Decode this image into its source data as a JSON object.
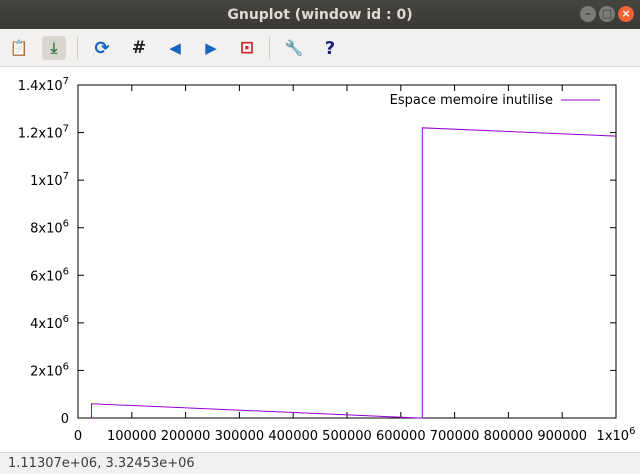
{
  "window": {
    "title": "Gnuplot (window id : 0)",
    "minimize_glyph": "–",
    "maximize_glyph": "□",
    "close_glyph": "×"
  },
  "toolbar": {
    "items": [
      {
        "icon": "clipboard-icon",
        "glyph": "📋"
      },
      {
        "icon": "export-icon",
        "glyph": "⤓"
      },
      {
        "icon": "replot-icon",
        "glyph": "⟳"
      },
      {
        "icon": "grid-icon",
        "glyph": "#"
      },
      {
        "icon": "zoom-previous-icon",
        "glyph": "◀"
      },
      {
        "icon": "zoom-next-icon",
        "glyph": "▶"
      },
      {
        "icon": "autoscale-icon",
        "glyph": "⊡"
      },
      {
        "icon": "settings-icon",
        "glyph": "🔧"
      },
      {
        "icon": "help-icon",
        "glyph": "?"
      }
    ]
  },
  "status": {
    "coords": "1.11307e+06,  3.32453e+06"
  },
  "chart_data": {
    "type": "line",
    "xlim": [
      0,
      1000000
    ],
    "ylim": [
      0,
      14000000
    ],
    "x_ticks": [
      0,
      100000,
      200000,
      300000,
      400000,
      500000,
      600000,
      700000,
      800000,
      900000,
      1000000
    ],
    "x_tick_labels": [
      "0",
      "100000",
      "200000",
      "300000",
      "400000",
      "500000",
      "600000",
      "700000",
      "800000",
      "900000",
      "1x10^6"
    ],
    "y_ticks": [
      0,
      2000000,
      4000000,
      6000000,
      8000000,
      10000000,
      12000000,
      14000000
    ],
    "y_tick_labels": [
      "0",
      "2x10^6",
      "4x10^6",
      "6x10^6",
      "8x10^6",
      "1x10^7",
      "1.2x10^7",
      "1.4x10^7"
    ],
    "grid": false,
    "legend_position": "top-right",
    "series": [
      {
        "name": "Espace memoire inutilise",
        "color": "#9400d3",
        "x": [
          25000,
          25000,
          635000,
          640000,
          640000,
          1000000
        ],
        "y": [
          0,
          600000,
          0,
          0,
          12200000,
          11850000
        ]
      }
    ]
  }
}
